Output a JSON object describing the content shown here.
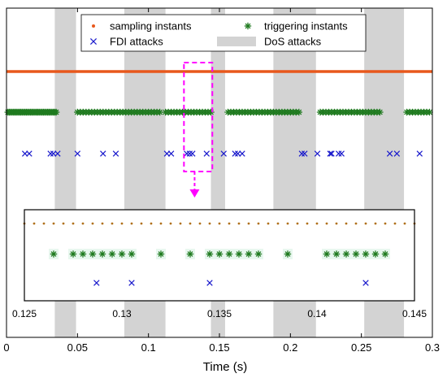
{
  "chart_data": {
    "type": "scatter",
    "xlabel": "Time (s)",
    "xlim": [
      0,
      0.3
    ],
    "x_ticks": [
      "0",
      "0.05",
      "0.1",
      "0.15",
      "0.2",
      "0.25",
      "0.3"
    ],
    "grid": false,
    "legend_position": "top-center",
    "legend": [
      {
        "label": "sampling instants",
        "marker": "dot",
        "color": "#e8581c"
      },
      {
        "label": "triggering instants",
        "marker": "asterisk",
        "color": "#1f7a1f"
      },
      {
        "label": "FDI attacks",
        "marker": "x",
        "color": "#1a1acc"
      },
      {
        "label": "DoS attacks",
        "marker": "band",
        "color": "#d3d3d3"
      }
    ],
    "dos_intervals": [
      [
        0.034,
        0.049
      ],
      [
        0.083,
        0.112
      ],
      [
        0.144,
        0.154
      ],
      [
        0.188,
        0.218
      ],
      [
        0.252,
        0.28
      ]
    ],
    "sampling_rows": {
      "main": "continuous over 0 to 0.3 s",
      "inset": "every 0.0005 s from 0.125 to 0.145 s"
    },
    "triggering_main": [
      0.001,
      0.002,
      0.003,
      0.004,
      0.005,
      0.006,
      0.007,
      0.008,
      0.009,
      0.01,
      0.011,
      0.012,
      0.013,
      0.014,
      0.015,
      0.016,
      0.017,
      0.018,
      0.019,
      0.02,
      0.021,
      0.022,
      0.023,
      0.024,
      0.025,
      0.026,
      0.027,
      0.028,
      0.029,
      0.03,
      0.031,
      0.032,
      0.033,
      0.034,
      0.035,
      0.05,
      0.052,
      0.054,
      0.056,
      0.058,
      0.06,
      0.062,
      0.064,
      0.066,
      0.068,
      0.07,
      0.072,
      0.074,
      0.076,
      0.078,
      0.08,
      0.082,
      0.084,
      0.086,
      0.088,
      0.09,
      0.092,
      0.094,
      0.096,
      0.098,
      0.1,
      0.102,
      0.104,
      0.106,
      0.108,
      0.112,
      0.114,
      0.116,
      0.118,
      0.12,
      0.122,
      0.124,
      0.126,
      0.128,
      0.13,
      0.132,
      0.134,
      0.136,
      0.138,
      0.14,
      0.142,
      0.144,
      0.156,
      0.158,
      0.16,
      0.162,
      0.164,
      0.166,
      0.168,
      0.17,
      0.172,
      0.174,
      0.176,
      0.178,
      0.18,
      0.182,
      0.184,
      0.186,
      0.188,
      0.19,
      0.192,
      0.194,
      0.196,
      0.198,
      0.2,
      0.202,
      0.204,
      0.206,
      0.221,
      0.223,
      0.225,
      0.227,
      0.229,
      0.231,
      0.233,
      0.235,
      0.237,
      0.239,
      0.241,
      0.243,
      0.245,
      0.247,
      0.249,
      0.251,
      0.253,
      0.255,
      0.257,
      0.259,
      0.261,
      0.263,
      0.282,
      0.284,
      0.286,
      0.288,
      0.29,
      0.292,
      0.294,
      0.296,
      0.298
    ],
    "fdi_main": [
      0.013,
      0.016,
      0.031,
      0.033,
      0.036,
      0.05,
      0.068,
      0.077,
      0.113,
      0.116,
      0.127,
      0.129,
      0.131,
      0.141,
      0.153,
      0.161,
      0.163,
      0.166,
      0.208,
      0.21,
      0.219,
      0.228,
      0.229,
      0.234,
      0.236,
      0.27,
      0.275,
      0.291
    ],
    "inset": {
      "xlim": [
        0.125,
        0.145
      ],
      "x_ticks": [
        "0.125",
        "0.13",
        "0.135",
        "0.14",
        "0.145"
      ],
      "triggering": [
        0.1265,
        0.1275,
        0.128,
        0.1285,
        0.129,
        0.1295,
        0.13,
        0.1305,
        0.132,
        0.1335,
        0.1345,
        0.135,
        0.1355,
        0.136,
        0.1365,
        0.137,
        0.1385,
        0.1405,
        0.141,
        0.1415,
        0.142,
        0.1425,
        0.143,
        0.1435
      ],
      "fdi": [
        0.1287,
        0.1305,
        0.1345,
        0.1425
      ]
    }
  }
}
